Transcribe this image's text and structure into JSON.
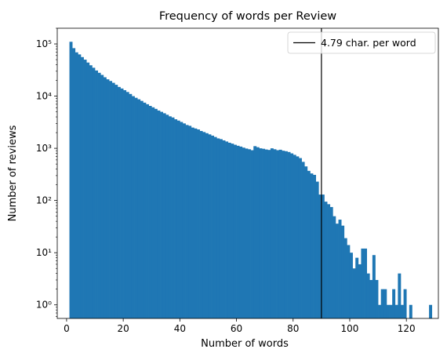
{
  "chart_data": {
    "type": "bar",
    "subtype": "histogram",
    "title": "Frequency of words per Review",
    "xlabel": "Number of words",
    "ylabel": "Number of reviews",
    "y_scale": "log",
    "xlim": [
      -3.3,
      131.3
    ],
    "ylim": [
      0.55,
      200000
    ],
    "bin_width": 1,
    "x_ticks": [
      0,
      20,
      40,
      60,
      80,
      100,
      120
    ],
    "x_tick_labels": [
      "0",
      "20",
      "40",
      "60",
      "80",
      "100",
      "120"
    ],
    "y_ticks": [
      1,
      10,
      100,
      1000,
      10000,
      100000
    ],
    "y_tick_labels": [
      "10⁰",
      "10¹",
      "10²",
      "10³",
      "10⁴",
      "10⁵"
    ],
    "bar_color": "#1f77b4",
    "bins_start": 1,
    "values": [
      110000,
      83000,
      69000,
      63000,
      56000,
      50000,
      44000,
      39000,
      35000,
      31000,
      28000,
      25500,
      23000,
      21000,
      19500,
      18000,
      16500,
      15000,
      14000,
      13000,
      12000,
      11000,
      10000,
      9300,
      8700,
      8100,
      7500,
      7000,
      6500,
      6100,
      5700,
      5300,
      5000,
      4700,
      4400,
      4100,
      3900,
      3600,
      3400,
      3200,
      3000,
      2800,
      2700,
      2500,
      2400,
      2300,
      2150,
      2050,
      1950,
      1850,
      1750,
      1650,
      1550,
      1500,
      1420,
      1350,
      1280,
      1230,
      1170,
      1120,
      1080,
      1030,
      990,
      960,
      920,
      1100,
      1050,
      1000,
      980,
      950,
      930,
      1000,
      960,
      920,
      940,
      900,
      880,
      850,
      800,
      750,
      700,
      650,
      550,
      450,
      370,
      330,
      310,
      230,
      130,
      130,
      95,
      85,
      75,
      50,
      36,
      43,
      33,
      19,
      14,
      10,
      5,
      8,
      6,
      12,
      12,
      4,
      3,
      9,
      3,
      1,
      2,
      2,
      1,
      1,
      2,
      1,
      4,
      1,
      2,
      0,
      1,
      0,
      0,
      0,
      0,
      0,
      0,
      1
    ],
    "vline": {
      "x": 90,
      "label": "4.79 char. per word",
      "color": "#000000"
    },
    "legend_placement": "top-right",
    "grid": false
  }
}
